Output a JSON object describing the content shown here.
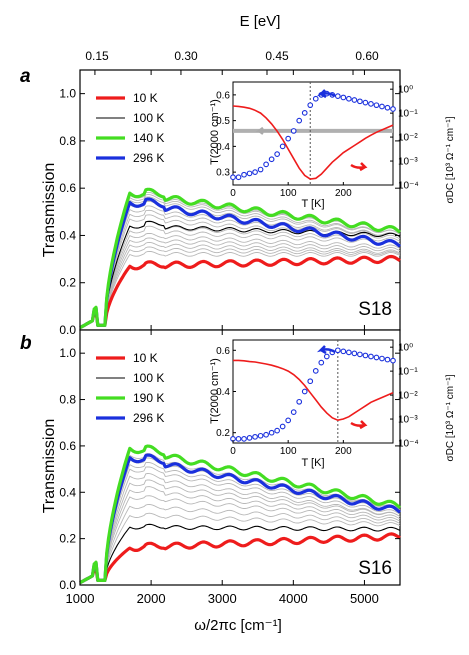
{
  "figure": {
    "top_axis": {
      "label": "E [eV]",
      "ticks": [
        "0.15",
        "0.30",
        "0.45",
        "0.60"
      ],
      "tick_energies_eV": [
        0.15,
        0.3,
        0.45,
        0.6
      ]
    },
    "x_axis": {
      "label": "ω/2πc [cm⁻¹]",
      "ticks": [
        "1000",
        "2000",
        "3000",
        "4000",
        "5000"
      ]
    },
    "y_axis_label": "Transmission",
    "y_ticks": [
      "0.0",
      "0.2",
      "0.4",
      "0.6",
      "0.8",
      "1.0"
    ]
  },
  "chart_data": [
    {
      "panel": "a",
      "sample_label": "S18",
      "type": "line",
      "xlabel": "ω/2πc [cm⁻¹]",
      "ylabel": "Transmission",
      "xlim": [
        1000,
        5500
      ],
      "ylim": [
        0,
        1.1
      ],
      "legend_position": "top-left",
      "series": [
        {
          "name": "10 K",
          "color": "#ee1c1c",
          "width": 3.2,
          "level": 0.28,
          "peak": 0.27,
          "cut": 1250,
          "step": 0.015,
          "end": 0.3
        },
        {
          "name": "100 K",
          "color": "#000000",
          "width": 1.1,
          "level": 0.44,
          "peak": 0.44,
          "cut": 1250,
          "step": 0.02,
          "end": 0.4
        },
        {
          "name": "140 K",
          "color": "#44dd22",
          "width": 3.2,
          "level": 0.53,
          "peak": 0.58,
          "cut": 1250,
          "step": 0.09,
          "end": 0.42
        },
        {
          "name": "296 K",
          "color": "#1a30dd",
          "width": 3.2,
          "level": 0.5,
          "peak": 0.54,
          "cut": 1250,
          "step": 0.07,
          "end": 0.36
        }
      ],
      "background_curves": {
        "color": "#b8b8b8",
        "levels": [
          0.31,
          0.33,
          0.35,
          0.37,
          0.39,
          0.41,
          0.43,
          0.46,
          0.48,
          0.5,
          0.52,
          0.54,
          0.55,
          0.56
        ],
        "ends": [
          0.32,
          0.325,
          0.33,
          0.34,
          0.35,
          0.37,
          0.38,
          0.39,
          0.4,
          0.4,
          0.41,
          0.41,
          0.42,
          0.42
        ]
      },
      "inset": {
        "xlabel": "T [K]",
        "ylabel_left": "T(2000 cm⁻¹)",
        "ylabel_right": "σDC [10³ Ω⁻¹ cm⁻¹]",
        "x_ticks": [
          "0",
          "100",
          "200"
        ],
        "y_left_ticks": [
          "0.3",
          "0.4",
          "0.5",
          "0.6"
        ],
        "y_right_ticks": [
          "10⁰",
          "10⁻¹",
          "10⁻²",
          "10⁻³",
          "10⁻⁴"
        ],
        "xlim": [
          0,
          290
        ],
        "ylim_left": [
          0.25,
          0.65
        ],
        "ylim_right_log": [
          -4,
          0.3
        ],
        "transition_T": 140,
        "transmission_T": [
          0,
          10,
          20,
          30,
          40,
          50,
          60,
          70,
          80,
          90,
          100,
          110,
          120,
          130,
          140,
          150,
          160,
          170,
          180,
          190,
          200,
          210,
          220,
          230,
          240,
          250,
          260,
          270,
          280,
          290
        ],
        "transmission_vals": [
          0.28,
          0.28,
          0.29,
          0.295,
          0.3,
          0.31,
          0.33,
          0.35,
          0.37,
          0.4,
          0.43,
          0.46,
          0.5,
          0.53,
          0.56,
          0.585,
          0.6,
          0.605,
          0.6,
          0.595,
          0.59,
          0.585,
          0.58,
          0.575,
          0.57,
          0.565,
          0.56,
          0.555,
          0.55,
          0.545
        ],
        "sigma_log": [
          -0.7,
          -0.72,
          -0.75,
          -0.8,
          -0.88,
          -1.0,
          -1.2,
          -1.45,
          -1.75,
          -2.1,
          -2.5,
          -2.9,
          -3.3,
          -3.6,
          -3.75,
          -3.72,
          -3.55,
          -3.3,
          -3.05,
          -2.85,
          -2.65,
          -2.5,
          -2.35,
          -2.2,
          -2.05,
          -1.92,
          -1.8,
          -1.7,
          -1.6,
          -1.5
        ],
        "grey_line_value": 0.46
      }
    },
    {
      "panel": "b",
      "sample_label": "S16",
      "type": "line",
      "xlabel": "ω/2πc [cm⁻¹]",
      "ylabel": "Transmission",
      "xlim": [
        1000,
        5500
      ],
      "ylim": [
        0,
        1.1
      ],
      "legend_position": "top-left",
      "series": [
        {
          "name": "10 K",
          "color": "#ee1c1c",
          "width": 3.2,
          "level": 0.17,
          "peak": 0.16,
          "cut": 1250,
          "step": 0.01,
          "end": 0.21
        },
        {
          "name": "100 K",
          "color": "#000000",
          "width": 1.1,
          "level": 0.24,
          "peak": 0.25,
          "cut": 1250,
          "step": 0.01,
          "end": 0.24
        },
        {
          "name": "190 K",
          "color": "#44dd22",
          "width": 3.2,
          "level": 0.56,
          "peak": 0.59,
          "cut": 1250,
          "step": 0.06,
          "end": 0.34
        },
        {
          "name": "296 K",
          "color": "#1a30dd",
          "width": 3.2,
          "level": 0.53,
          "peak": 0.55,
          "cut": 1250,
          "step": 0.05,
          "end": 0.32
        }
      ],
      "background_curves": {
        "color": "#b8b8b8",
        "levels": [
          0.29,
          0.33,
          0.37,
          0.4,
          0.43,
          0.46,
          0.49,
          0.51,
          0.53,
          0.55
        ],
        "ends": [
          0.26,
          0.27,
          0.28,
          0.29,
          0.3,
          0.3,
          0.31,
          0.32,
          0.33,
          0.33
        ]
      },
      "inset": {
        "xlabel": "T [K]",
        "ylabel_left": "T(2000 cm⁻¹)",
        "ylabel_right": "σDC [10³ Ω⁻¹ cm⁻¹]",
        "x_ticks": [
          "0",
          "100",
          "200"
        ],
        "y_left_ticks": [
          "0.2",
          "0.4",
          "0.6"
        ],
        "y_right_ticks": [
          "10⁰",
          "10⁻¹",
          "10⁻²",
          "10⁻³",
          "10⁻⁴"
        ],
        "xlim": [
          0,
          290
        ],
        "ylim_left": [
          0.15,
          0.65
        ],
        "ylim_right_log": [
          -4,
          0.3
        ],
        "transition_T": 190,
        "transmission_T": [
          0,
          10,
          20,
          30,
          40,
          50,
          60,
          70,
          80,
          90,
          100,
          110,
          120,
          130,
          140,
          150,
          160,
          170,
          180,
          190,
          200,
          210,
          220,
          230,
          240,
          250,
          260,
          270,
          280,
          290
        ],
        "transmission_vals": [
          0.17,
          0.17,
          0.17,
          0.175,
          0.18,
          0.185,
          0.19,
          0.2,
          0.21,
          0.23,
          0.26,
          0.3,
          0.35,
          0.4,
          0.45,
          0.5,
          0.54,
          0.57,
          0.59,
          0.6,
          0.595,
          0.59,
          0.585,
          0.58,
          0.575,
          0.57,
          0.565,
          0.56,
          0.555,
          0.55
        ],
        "sigma_log": [
          -0.55,
          -0.55,
          -0.57,
          -0.6,
          -0.62,
          -0.66,
          -0.7,
          -0.75,
          -0.82,
          -0.9,
          -1.0,
          -1.15,
          -1.35,
          -1.6,
          -1.9,
          -2.2,
          -2.5,
          -2.75,
          -2.95,
          -3.05,
          -3.0,
          -2.9,
          -2.75,
          -2.6,
          -2.45,
          -2.3,
          -2.2,
          -2.1,
          -2.0,
          -1.9
        ],
        "grey_line_value": null
      }
    }
  ]
}
